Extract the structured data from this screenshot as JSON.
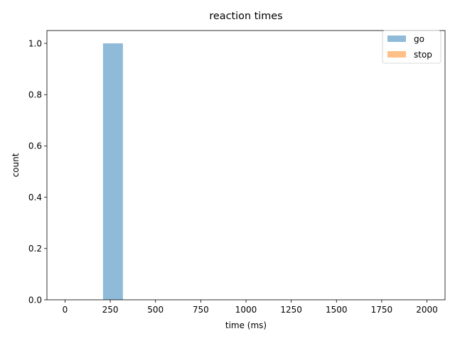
{
  "chart_data": {
    "type": "bar",
    "title": "reaction times",
    "xlabel": "time (ms)",
    "ylabel": "count",
    "xlim": [
      -100,
      2100
    ],
    "ylim": [
      0,
      1.05
    ],
    "xticks": [
      0,
      250,
      500,
      750,
      1000,
      1250,
      1500,
      1750,
      2000
    ],
    "xtick_labels": [
      "0",
      "250",
      "500",
      "750",
      "1000",
      "1250",
      "1500",
      "1750",
      "2000"
    ],
    "yticks": [
      0.0,
      0.2,
      0.4,
      0.6,
      0.8,
      1.0
    ],
    "ytick_labels": [
      "0.0",
      "0.2",
      "0.4",
      "0.6",
      "0.8",
      "1.0"
    ],
    "grid": false,
    "legend_position": "top-right",
    "series": [
      {
        "name": "go",
        "color": "#1f77b4",
        "opacity": 0.5,
        "bins": [
          {
            "x0": 210,
            "x1": 320,
            "count": 1
          }
        ]
      },
      {
        "name": "stop",
        "color": "#ff7f0e",
        "opacity": 0.5,
        "bins": []
      }
    ]
  }
}
